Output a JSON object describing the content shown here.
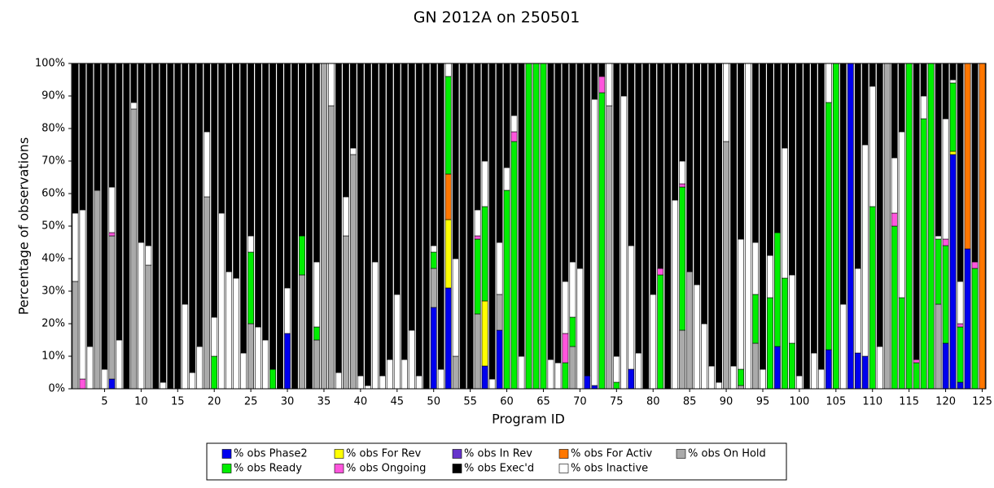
{
  "chart_data": {
    "type": "bar",
    "stacked": true,
    "title": "GN 2012A on 250501",
    "xlabel": "Program ID",
    "ylabel": "Percentage of observations",
    "x": [
      1,
      2,
      3,
      4,
      5,
      6,
      7,
      8,
      9,
      10,
      11,
      12,
      13,
      14,
      15,
      16,
      17,
      18,
      19,
      20,
      21,
      22,
      23,
      24,
      25,
      26,
      27,
      28,
      29,
      30,
      31,
      32,
      33,
      34,
      35,
      36,
      37,
      38,
      39,
      40,
      41,
      42,
      43,
      44,
      45,
      46,
      47,
      48,
      49,
      50,
      51,
      52,
      53,
      54,
      55,
      56,
      57,
      58,
      59,
      60,
      61,
      62,
      63,
      64,
      65,
      66,
      67,
      68,
      69,
      70,
      71,
      72,
      73,
      74,
      75,
      76,
      77,
      78,
      79,
      80,
      81,
      82,
      83,
      84,
      85,
      86,
      87,
      88,
      89,
      90,
      91,
      92,
      93,
      94,
      95,
      96,
      97,
      98,
      99,
      100,
      101,
      102,
      103,
      104,
      105,
      106,
      107,
      108,
      109,
      110,
      111,
      112,
      113,
      114,
      115,
      116,
      117,
      118,
      119,
      120,
      121,
      122,
      123,
      124,
      125
    ],
    "xlim": [
      0.5,
      125.5
    ],
    "xticks": [
      5,
      10,
      15,
      20,
      25,
      30,
      35,
      40,
      45,
      50,
      55,
      60,
      65,
      70,
      75,
      80,
      85,
      90,
      95,
      100,
      105,
      110,
      115,
      120,
      125
    ],
    "ylim": [
      0,
      100
    ],
    "yticks": [
      {
        "value": 0,
        "label": "0%"
      },
      {
        "value": 10,
        "label": "10%"
      },
      {
        "value": 20,
        "label": "20%"
      },
      {
        "value": 30,
        "label": "30%"
      },
      {
        "value": 40,
        "label": "40%"
      },
      {
        "value": 50,
        "label": "50%"
      },
      {
        "value": 60,
        "label": "60%"
      },
      {
        "value": 70,
        "label": "70%"
      },
      {
        "value": 80,
        "label": "80%"
      },
      {
        "value": 90,
        "label": "90%"
      },
      {
        "value": 100,
        "label": "100%"
      }
    ],
    "series": [
      {
        "name": "% obs Phase2",
        "color": "#0000ee",
        "values": [
          0,
          0,
          0,
          0,
          0,
          3,
          0,
          0,
          0,
          0,
          0,
          0,
          0,
          0,
          0,
          0,
          0,
          0,
          0,
          0,
          0,
          0,
          0,
          0,
          0,
          0,
          0,
          0,
          0,
          17,
          0,
          0,
          0,
          0,
          0,
          0,
          0,
          0,
          0,
          0,
          0,
          0,
          0,
          0,
          0,
          0,
          0,
          0,
          0,
          25,
          0,
          31,
          0,
          0,
          0,
          0,
          7,
          0,
          18,
          0,
          0,
          0,
          0,
          0,
          0,
          0,
          0,
          0,
          0,
          0,
          4,
          1,
          0,
          0,
          0,
          0,
          6,
          0,
          0,
          0,
          0,
          0,
          0,
          0,
          0,
          0,
          0,
          0,
          0,
          0,
          0,
          0,
          0,
          0,
          0,
          0,
          13,
          0,
          0,
          0,
          0,
          0,
          0,
          12,
          0,
          0,
          100,
          11,
          10,
          0,
          0,
          0,
          0,
          0,
          0,
          0,
          0,
          0,
          0,
          14,
          72,
          2,
          43,
          0,
          0
        ]
      },
      {
        "name": "% obs For Rev",
        "color": "#ffff00",
        "values": [
          0,
          0,
          0,
          0,
          0,
          0,
          0,
          0,
          0,
          0,
          0,
          0,
          0,
          0,
          0,
          0,
          0,
          0,
          0,
          0,
          0,
          0,
          0,
          0,
          0,
          0,
          0,
          0,
          0,
          0,
          0,
          0,
          0,
          0,
          0,
          0,
          0,
          0,
          0,
          0,
          0,
          0,
          0,
          0,
          0,
          0,
          0,
          0,
          0,
          0,
          0,
          21,
          0,
          0,
          0,
          0,
          20,
          0,
          0,
          0,
          0,
          0,
          0,
          0,
          0,
          0,
          0,
          0,
          0,
          0,
          0,
          0,
          0,
          0,
          0,
          0,
          0,
          0,
          0,
          0,
          0,
          0,
          0,
          0,
          0,
          0,
          0,
          0,
          0,
          0,
          0,
          0,
          0,
          0,
          0,
          0,
          0,
          0,
          0,
          0,
          0,
          0,
          0,
          0,
          0,
          0,
          0,
          0,
          0,
          0,
          0,
          0,
          0,
          0,
          0,
          0,
          0,
          0,
          0,
          0,
          1,
          0,
          0,
          0,
          0
        ]
      },
      {
        "name": "% obs In Rev",
        "color": "#6633cc",
        "values": [
          0,
          0,
          0,
          0,
          0,
          0,
          0,
          0,
          0,
          0,
          0,
          0,
          0,
          0,
          0,
          0,
          0,
          0,
          0,
          0,
          0,
          0,
          0,
          0,
          0,
          0,
          0,
          0,
          0,
          0,
          0,
          0,
          0,
          0,
          0,
          0,
          0,
          0,
          0,
          0,
          0,
          0,
          0,
          0,
          0,
          0,
          0,
          0,
          0,
          0,
          0,
          0,
          0,
          0,
          0,
          0,
          0,
          0,
          0,
          0,
          0,
          0,
          0,
          0,
          0,
          0,
          0,
          0,
          0,
          0,
          0,
          0,
          0,
          0,
          0,
          0,
          0,
          0,
          0,
          0,
          0,
          0,
          0,
          0,
          0,
          0,
          0,
          0,
          0,
          0,
          0,
          0,
          0,
          0,
          0,
          0,
          0,
          0,
          0,
          0,
          0,
          0,
          0,
          0,
          0,
          0,
          0,
          0,
          0,
          0,
          0,
          0,
          0,
          0,
          0,
          0,
          0,
          0,
          0,
          0,
          0,
          0,
          0,
          0,
          0
        ]
      },
      {
        "name": "% obs For Activ",
        "color": "#ff7700",
        "values": [
          0,
          0,
          0,
          0,
          0,
          0,
          0,
          0,
          0,
          0,
          0,
          0,
          0,
          0,
          0,
          0,
          0,
          0,
          0,
          0,
          0,
          0,
          0,
          0,
          0,
          0,
          0,
          0,
          0,
          0,
          0,
          0,
          0,
          0,
          0,
          0,
          0,
          0,
          0,
          0,
          0,
          0,
          0,
          0,
          0,
          0,
          0,
          0,
          0,
          0,
          0,
          14,
          0,
          0,
          0,
          0,
          0,
          0,
          0,
          0,
          0,
          0,
          0,
          0,
          0,
          0,
          0,
          0,
          0,
          0,
          0,
          0,
          0,
          0,
          0,
          0,
          0,
          0,
          0,
          0,
          0,
          0,
          0,
          0,
          0,
          0,
          0,
          0,
          0,
          0,
          0,
          0,
          0,
          0,
          0,
          0,
          0,
          0,
          0,
          0,
          0,
          0,
          0,
          0,
          0,
          0,
          0,
          0,
          0,
          0,
          0,
          0,
          0,
          0,
          0,
          0,
          0,
          0,
          0,
          0,
          0,
          0,
          57,
          0,
          100
        ]
      },
      {
        "name": "% obs On Hold",
        "color": "#aaaaaa",
        "values": [
          33,
          0,
          0,
          61,
          0,
          44,
          0,
          0,
          86,
          0,
          38,
          0,
          0,
          0,
          0,
          0,
          0,
          0,
          59,
          0,
          0,
          0,
          0,
          0,
          20,
          0,
          0,
          0,
          0,
          0,
          0,
          35,
          0,
          15,
          100,
          87,
          0,
          47,
          72,
          0,
          0,
          0,
          0,
          0,
          0,
          0,
          0,
          0,
          0,
          12,
          0,
          0,
          10,
          0,
          0,
          23,
          0,
          0,
          11,
          0,
          0,
          0,
          0,
          0,
          0,
          0,
          0,
          0,
          13,
          0,
          0,
          0,
          0,
          87,
          0,
          0,
          0,
          0,
          0,
          0,
          0,
          0,
          0,
          18,
          36,
          0,
          0,
          0,
          0,
          76,
          0,
          1,
          0,
          14,
          0,
          0,
          0,
          0,
          0,
          0,
          0,
          0,
          0,
          0,
          0,
          0,
          0,
          0,
          0,
          0,
          0,
          100,
          0,
          0,
          0,
          0,
          0,
          0,
          26,
          0,
          0,
          0,
          0,
          0,
          0
        ]
      },
      {
        "name": "% obs Ready",
        "color": "#00ee00",
        "values": [
          0,
          0,
          0,
          0,
          0,
          0,
          0,
          0,
          0,
          0,
          0,
          0,
          0,
          0,
          0,
          0,
          0,
          0,
          0,
          10,
          0,
          0,
          0,
          0,
          22,
          0,
          0,
          6,
          0,
          0,
          0,
          12,
          0,
          4,
          0,
          0,
          0,
          0,
          0,
          0,
          0,
          0,
          0,
          0,
          0,
          0,
          0,
          0,
          0,
          5,
          0,
          30,
          0,
          0,
          0,
          23,
          29,
          0,
          0,
          61,
          76,
          0,
          100,
          100,
          100,
          0,
          0,
          8,
          9,
          0,
          0,
          0,
          91,
          0,
          2,
          0,
          0,
          0,
          0,
          0,
          35,
          0,
          0,
          44,
          0,
          0,
          0,
          0,
          0,
          0,
          0,
          5,
          0,
          15,
          0,
          28,
          35,
          34,
          14,
          0,
          0,
          0,
          0,
          76,
          100,
          0,
          0,
          0,
          0,
          56,
          0,
          0,
          50,
          28,
          100,
          8,
          83,
          100,
          20,
          30,
          21,
          17,
          0,
          37,
          0
        ]
      },
      {
        "name": "% obs Ongoing",
        "color": "#ff55dd",
        "values": [
          0,
          3,
          0,
          0,
          0,
          1,
          0,
          0,
          0,
          0,
          0,
          0,
          0,
          0,
          0,
          0,
          0,
          0,
          0,
          0,
          0,
          0,
          0,
          0,
          0,
          0,
          0,
          0,
          0,
          0,
          0,
          0,
          0,
          0,
          0,
          0,
          0,
          0,
          0,
          0,
          0,
          0,
          0,
          0,
          0,
          0,
          0,
          0,
          0,
          0,
          0,
          0,
          0,
          0,
          0,
          1,
          0,
          0,
          0,
          0,
          3,
          0,
          0,
          0,
          0,
          0,
          0,
          9,
          0,
          0,
          0,
          0,
          5,
          0,
          0,
          0,
          0,
          0,
          0,
          0,
          2,
          0,
          0,
          1,
          0,
          0,
          0,
          0,
          0,
          0,
          0,
          0,
          0,
          0,
          0,
          0,
          0,
          0,
          0,
          0,
          0,
          0,
          0,
          0,
          0,
          0,
          0,
          0,
          0,
          0,
          0,
          0,
          4,
          0,
          0,
          1,
          0,
          0,
          0,
          2,
          0,
          1,
          0,
          2,
          0
        ]
      },
      {
        "name": "% obs Exec'd",
        "color": "#000000",
        "values": [
          46,
          45,
          87,
          39,
          94,
          38,
          85,
          100,
          12,
          55,
          56,
          100,
          98,
          100,
          100,
          74,
          95,
          87,
          21,
          78,
          46,
          64,
          66,
          89,
          53,
          81,
          85,
          94,
          100,
          69,
          100,
          53,
          100,
          61,
          0,
          0,
          95,
          41,
          26,
          96,
          99,
          61,
          96,
          91,
          71,
          91,
          82,
          96,
          100,
          56,
          94,
          0,
          60,
          100,
          100,
          45,
          30,
          97,
          55,
          32,
          16,
          90,
          0,
          0,
          0,
          91,
          92,
          67,
          61,
          63,
          96,
          11,
          4,
          0,
          90,
          10,
          56,
          89,
          100,
          71,
          63,
          100,
          42,
          30,
          64,
          68,
          80,
          93,
          98,
          0,
          93,
          54,
          0,
          55,
          94,
          59,
          52,
          26,
          65,
          96,
          100,
          89,
          94,
          0,
          0,
          74,
          0,
          63,
          25,
          7,
          87,
          0,
          29,
          21,
          0,
          91,
          10,
          0,
          53,
          17,
          5,
          67,
          0,
          61,
          0
        ]
      },
      {
        "name": "% obs Inactive",
        "color": "#ffffff",
        "values": [
          21,
          52,
          13,
          0,
          6,
          14,
          15,
          0,
          2,
          45,
          6,
          0,
          2,
          0,
          0,
          26,
          5,
          13,
          20,
          12,
          54,
          36,
          34,
          11,
          5,
          19,
          15,
          0,
          0,
          14,
          0,
          0,
          0,
          20,
          0,
          13,
          5,
          12,
          2,
          4,
          1,
          39,
          4,
          9,
          29,
          9,
          18,
          4,
          0,
          2,
          6,
          4,
          30,
          0,
          0,
          8,
          14,
          3,
          16,
          7,
          5,
          10,
          0,
          0,
          0,
          9,
          8,
          16,
          17,
          37,
          0,
          88,
          0,
          13,
          8,
          90,
          38,
          11,
          0,
          29,
          0,
          0,
          58,
          7,
          0,
          32,
          20,
          7,
          2,
          24,
          7,
          40,
          100,
          16,
          6,
          13,
          0,
          40,
          21,
          4,
          0,
          11,
          6,
          12,
          0,
          26,
          0,
          26,
          65,
          37,
          13,
          0,
          17,
          51,
          0,
          0,
          7,
          0,
          1,
          37,
          1,
          13,
          0,
          0,
          0
        ]
      }
    ]
  }
}
